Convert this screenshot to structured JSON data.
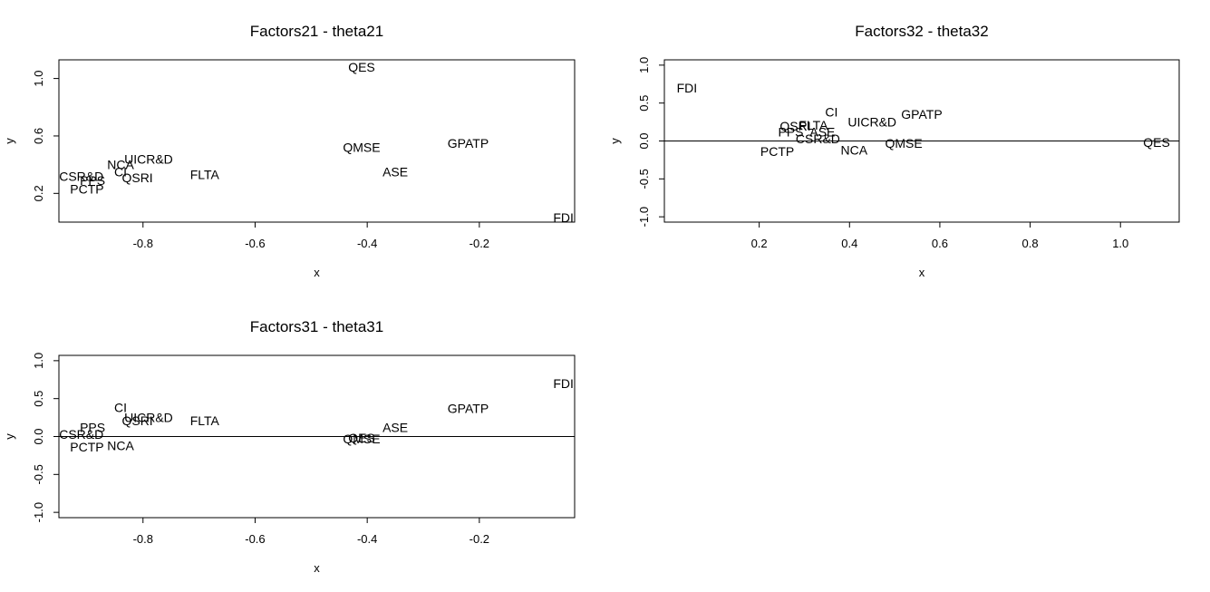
{
  "chart_data": [
    {
      "type": "scatter",
      "title": "Factors21 - theta21",
      "xlabel": "x",
      "ylabel": "y",
      "xlim": [
        -0.95,
        -0.03
      ],
      "ylim": [
        0.0,
        1.13
      ],
      "xticks": [
        "-0.8",
        "-0.6",
        "-0.4",
        "-0.2"
      ],
      "xtick_values": [
        -0.8,
        -0.6,
        -0.4,
        -0.2
      ],
      "yticks": [
        "0.2",
        "0.6",
        "1.0"
      ],
      "ytick_values": [
        0.2,
        0.6,
        1.0
      ],
      "zero_line": false,
      "points": [
        {
          "label": "QES",
          "x": -0.41,
          "y": 1.08
        },
        {
          "label": "GPATP",
          "x": -0.22,
          "y": 0.55
        },
        {
          "label": "QMSE",
          "x": -0.41,
          "y": 0.52
        },
        {
          "label": "ASE",
          "x": -0.35,
          "y": 0.35
        },
        {
          "label": "FLTA",
          "x": -0.69,
          "y": 0.33
        },
        {
          "label": "UICR&D",
          "x": -0.79,
          "y": 0.44
        },
        {
          "label": "NCA",
          "x": -0.84,
          "y": 0.4
        },
        {
          "label": "CI",
          "x": -0.84,
          "y": 0.35
        },
        {
          "label": "QSRI",
          "x": -0.81,
          "y": 0.31
        },
        {
          "label": "PPS",
          "x": -0.89,
          "y": 0.29
        },
        {
          "label": "CSR&D",
          "x": -0.91,
          "y": 0.32
        },
        {
          "label": "PCTP",
          "x": -0.9,
          "y": 0.23
        },
        {
          "label": "FDI",
          "x": -0.05,
          "y": 0.03
        }
      ]
    },
    {
      "type": "scatter",
      "title": "Factors32 - theta32",
      "xlabel": "x",
      "ylabel": "y",
      "xlim": [
        -0.01,
        1.13
      ],
      "ylim": [
        -1.07,
        1.07
      ],
      "xticks": [
        "0.2",
        "0.4",
        "0.6",
        "0.8",
        "1.0"
      ],
      "xtick_values": [
        0.2,
        0.4,
        0.6,
        0.8,
        1.0
      ],
      "yticks": [
        "-1.0",
        "-0.5",
        "0.0",
        "0.5",
        "1.0"
      ],
      "ytick_values": [
        -1.0,
        -0.5,
        0.0,
        0.5,
        1.0
      ],
      "zero_line": true,
      "points": [
        {
          "label": "FDI",
          "x": 0.04,
          "y": 0.7
        },
        {
          "label": "CI",
          "x": 0.36,
          "y": 0.38
        },
        {
          "label": "GPATP",
          "x": 0.56,
          "y": 0.35
        },
        {
          "label": "UICR&D",
          "x": 0.45,
          "y": 0.25
        },
        {
          "label": "QSRI",
          "x": 0.28,
          "y": 0.2
        },
        {
          "label": "FLTA",
          "x": 0.32,
          "y": 0.21
        },
        {
          "label": "PPS",
          "x": 0.27,
          "y": 0.12
        },
        {
          "label": "ASE",
          "x": 0.34,
          "y": 0.12
        },
        {
          "label": "CSR&D",
          "x": 0.33,
          "y": 0.03
        },
        {
          "label": "QMSE",
          "x": 0.52,
          "y": -0.03
        },
        {
          "label": "NCA",
          "x": 0.41,
          "y": -0.12
        },
        {
          "label": "PCTP",
          "x": 0.24,
          "y": -0.14
        },
        {
          "label": "QES",
          "x": 1.08,
          "y": -0.02
        }
      ]
    },
    {
      "type": "scatter",
      "title": "Factors31 - theta31",
      "xlabel": "x",
      "ylabel": "y",
      "xlim": [
        -0.95,
        -0.03
      ],
      "ylim": [
        -1.07,
        1.07
      ],
      "xticks": [
        "-0.8",
        "-0.6",
        "-0.4",
        "-0.2"
      ],
      "xtick_values": [
        -0.8,
        -0.6,
        -0.4,
        -0.2
      ],
      "yticks": [
        "-1.0",
        "-0.5",
        "0.0",
        "0.5",
        "1.0"
      ],
      "ytick_values": [
        -1.0,
        -0.5,
        0.0,
        0.5,
        1.0
      ],
      "zero_line": true,
      "points": [
        {
          "label": "FDI",
          "x": -0.05,
          "y": 0.7
        },
        {
          "label": "GPATP",
          "x": -0.22,
          "y": 0.37
        },
        {
          "label": "CI",
          "x": -0.84,
          "y": 0.38
        },
        {
          "label": "UICR&D",
          "x": -0.79,
          "y": 0.25
        },
        {
          "label": "QSRI",
          "x": -0.81,
          "y": 0.21
        },
        {
          "label": "FLTA",
          "x": -0.69,
          "y": 0.21
        },
        {
          "label": "PPS",
          "x": -0.89,
          "y": 0.12
        },
        {
          "label": "CSR&D",
          "x": -0.91,
          "y": 0.03
        },
        {
          "label": "PCTP",
          "x": -0.9,
          "y": -0.14
        },
        {
          "label": "NCA",
          "x": -0.84,
          "y": -0.12
        },
        {
          "label": "ASE",
          "x": -0.35,
          "y": 0.12
        },
        {
          "label": "QES",
          "x": -0.41,
          "y": -0.02
        },
        {
          "label": "QMSE",
          "x": -0.41,
          "y": -0.03
        }
      ]
    }
  ]
}
